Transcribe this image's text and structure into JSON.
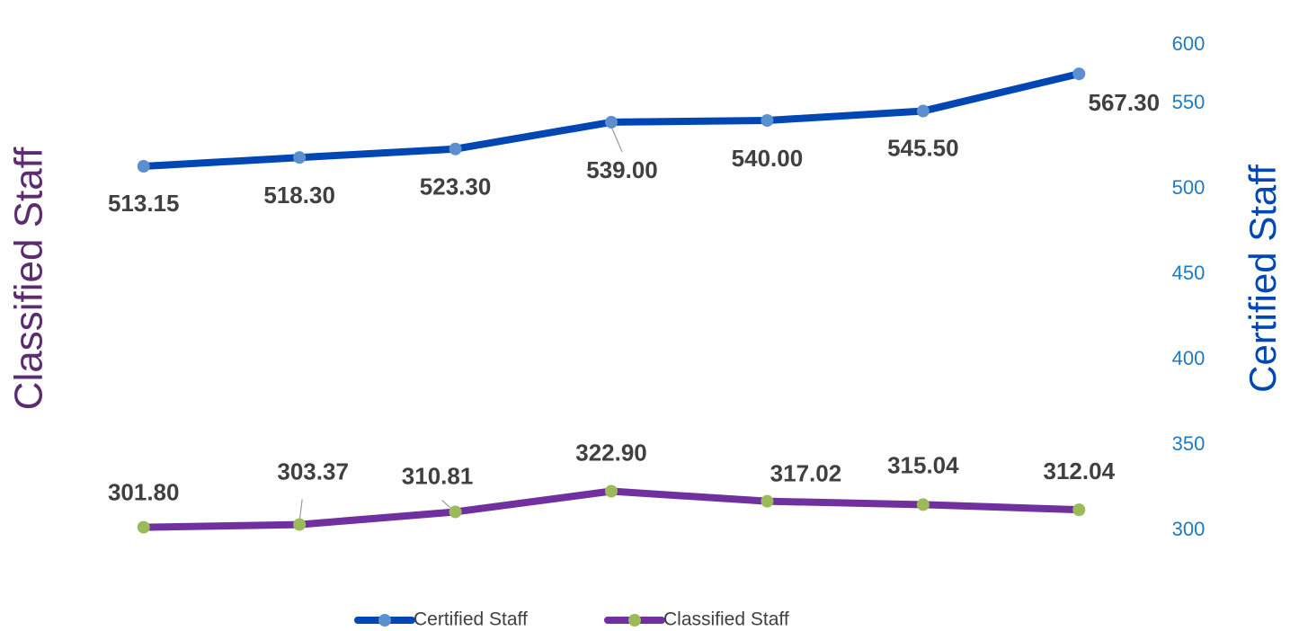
{
  "chart_data": {
    "type": "line",
    "categories": [
      null,
      null,
      null,
      null,
      null,
      null,
      null
    ],
    "ylabel": "Classified Staff",
    "y2label": "Certified Staff",
    "y2lim": [
      300,
      600
    ],
    "y2ticks": [
      300,
      350,
      400,
      450,
      500,
      550,
      600
    ],
    "legend": "bottom",
    "series": [
      {
        "name": "Certified Staff",
        "color": "#0047b3",
        "marker_color": "#5b8fd0",
        "axis": "y2",
        "values": [
          513.15,
          518.3,
          523.3,
          539,
          540,
          545.5,
          567.3
        ],
        "value_labels": [
          "513.15",
          "518.30",
          "523.30",
          "539.00",
          "540.00",
          "545.50",
          "567.30"
        ]
      },
      {
        "name": "Classified Staff",
        "color": "#7030a0",
        "marker_color": "#9bbb59",
        "axis": "y2",
        "values": [
          301.8,
          303.37,
          310.81,
          322.9,
          317.02,
          315.04,
          312.04
        ],
        "value_labels": [
          "301.80",
          "303.37",
          "310.81",
          "322.90",
          "317.02",
          "315.04",
          "312.04"
        ]
      }
    ]
  }
}
